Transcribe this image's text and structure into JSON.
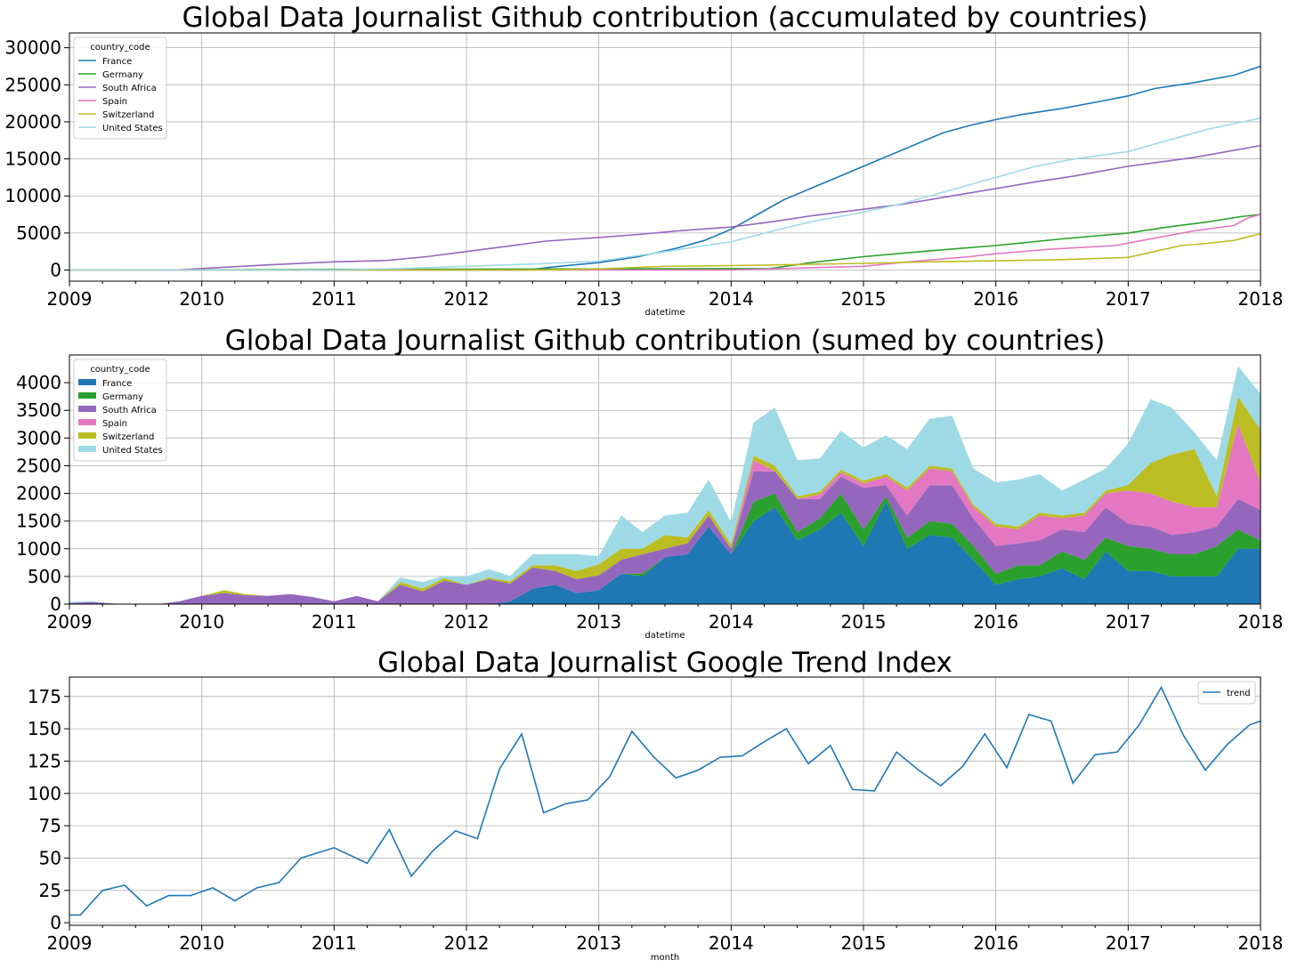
{
  "chart_data": [
    {
      "type": "line",
      "title": "Global Data Journalist Github contribution (accumulated by countries)",
      "xlabel": "datetime",
      "ylabel": "",
      "xlim": [
        2009,
        2018
      ],
      "ylim": [
        -1500,
        32000
      ],
      "x_ticks": [
        "2009",
        "2010",
        "2011",
        "2012",
        "2013",
        "2014",
        "2015",
        "2016",
        "2017",
        "2018"
      ],
      "y_ticks": [
        0,
        5000,
        10000,
        15000,
        20000,
        25000,
        30000
      ],
      "grid": true,
      "legend": {
        "title": "country_code",
        "placement": "top-left"
      },
      "series": [
        {
          "name": "France",
          "color": "#1f77b4",
          "x": [
            2009,
            2012.45,
            2012.7,
            2013.0,
            2013.3,
            2013.6,
            2013.8,
            2014.0,
            2014.2,
            2014.4,
            2014.6,
            2014.8,
            2015.0,
            2015.2,
            2015.4,
            2015.6,
            2015.8,
            2016.0,
            2016.2,
            2016.5,
            2016.8,
            2017.0,
            2017.2,
            2017.5,
            2017.8,
            2018.0
          ],
          "y": [
            0,
            0,
            500,
            1000,
            1800,
            3000,
            4000,
            5500,
            7500,
            9500,
            11000,
            12500,
            14000,
            15500,
            17000,
            18500,
            19500,
            20300,
            21000,
            21800,
            22800,
            23500,
            24500,
            25300,
            26300,
            27500
          ]
        },
        {
          "name": "Germany",
          "color": "#2ca02c",
          "x": [
            2009,
            2014.3,
            2014.6,
            2015.0,
            2015.5,
            2016.0,
            2016.5,
            2017.0,
            2017.3,
            2017.6,
            2017.85,
            2018.0
          ],
          "y": [
            0,
            200,
            1000,
            1800,
            2600,
            3300,
            4200,
            5000,
            5800,
            6500,
            7200,
            7500
          ]
        },
        {
          "name": "South Africa",
          "color": "#9467bd",
          "x": [
            2009,
            2009.8,
            2010.0,
            2010.5,
            2011.0,
            2011.4,
            2011.7,
            2012.0,
            2012.3,
            2012.6,
            2013.0,
            2013.3,
            2013.6,
            2014.0,
            2014.3,
            2014.6,
            2015.0,
            2015.3,
            2015.6,
            2016.0,
            2016.3,
            2016.6,
            2017.0,
            2017.5,
            2018.0
          ],
          "y": [
            0,
            0,
            200,
            700,
            1100,
            1300,
            1800,
            2500,
            3200,
            3900,
            4400,
            4800,
            5300,
            5800,
            6500,
            7300,
            8200,
            8900,
            9800,
            11000,
            11900,
            12700,
            14000,
            15200,
            16800
          ]
        },
        {
          "name": "Spain",
          "color": "#e377c2",
          "x": [
            2009,
            2014.0,
            2014.4,
            2015.0,
            2015.4,
            2015.8,
            2016.0,
            2016.4,
            2016.9,
            2017.2,
            2017.5,
            2017.8,
            2017.9,
            2018.0
          ],
          "y": [
            0,
            0,
            200,
            500,
            1200,
            1800,
            2200,
            2800,
            3300,
            4300,
            5300,
            6000,
            7000,
            7500
          ]
        },
        {
          "name": "Switzerland",
          "color": "#bcbd22",
          "x": [
            2009,
            2012.5,
            2013.0,
            2013.5,
            2014.0,
            2014.5,
            2015.0,
            2015.5,
            2016.0,
            2016.5,
            2017.0,
            2017.2,
            2017.4,
            2017.6,
            2017.8,
            2018.0
          ],
          "y": [
            0,
            0,
            150,
            500,
            600,
            750,
            900,
            1100,
            1250,
            1400,
            1700,
            2500,
            3300,
            3600,
            4000,
            4900
          ]
        },
        {
          "name": "United States",
          "color": "#9edae5",
          "x": [
            2009,
            2009.8,
            2010.5,
            2011.0,
            2011.5,
            2012.0,
            2012.5,
            2013.0,
            2013.4,
            2013.8,
            2014.0,
            2014.3,
            2014.6,
            2015.0,
            2015.3,
            2015.6,
            2016.0,
            2016.3,
            2016.6,
            2017.0,
            2017.3,
            2017.6,
            2018.0
          ],
          "y": [
            0,
            0,
            0,
            0,
            200,
            500,
            800,
            1200,
            2200,
            3300,
            3800,
            5200,
            6500,
            7800,
            9000,
            10500,
            12500,
            14000,
            15000,
            16000,
            17500,
            19000,
            20500
          ]
        }
      ]
    },
    {
      "type": "area",
      "stacked": true,
      "title": "Global Data Journalist Github contribution (sumed by countries)",
      "xlabel": "datetime",
      "ylabel": "",
      "xlim": [
        2009,
        2018
      ],
      "ylim": [
        0,
        4500
      ],
      "x_ticks": [
        "2009",
        "2010",
        "2011",
        "2012",
        "2013",
        "2014",
        "2015",
        "2016",
        "2017",
        "2018"
      ],
      "y_ticks": [
        0,
        500,
        1000,
        1500,
        2000,
        2500,
        3000,
        3500,
        4000
      ],
      "grid": true,
      "legend": {
        "title": "country_code",
        "placement": "top-left"
      },
      "x": [
        2009.0,
        2009.17,
        2009.33,
        2009.5,
        2009.67,
        2009.83,
        2010.0,
        2010.17,
        2010.33,
        2010.5,
        2010.67,
        2010.83,
        2011.0,
        2011.17,
        2011.33,
        2011.5,
        2011.67,
        2011.83,
        2012.0,
        2012.17,
        2012.33,
        2012.5,
        2012.67,
        2012.83,
        2013.0,
        2013.17,
        2013.33,
        2013.5,
        2013.67,
        2013.83,
        2014.0,
        2014.17,
        2014.33,
        2014.5,
        2014.67,
        2014.83,
        2015.0,
        2015.17,
        2015.33,
        2015.5,
        2015.67,
        2015.83,
        2016.0,
        2016.17,
        2016.33,
        2016.5,
        2016.67,
        2016.83,
        2017.0,
        2017.17,
        2017.33,
        2017.5,
        2017.67,
        2017.83,
        2018.0
      ],
      "series": [
        {
          "name": "France",
          "color": "#1f77b4",
          "values": [
            0,
            0,
            0,
            0,
            0,
            0,
            0,
            0,
            0,
            0,
            0,
            0,
            0,
            0,
            0,
            0,
            0,
            0,
            0,
            0,
            50,
            280,
            350,
            200,
            250,
            550,
            500,
            850,
            900,
            1400,
            900,
            1500,
            1750,
            1150,
            1350,
            1650,
            1050,
            1850,
            1000,
            1250,
            1200,
            800,
            350,
            450,
            500,
            650,
            450,
            950,
            600,
            600,
            500,
            500,
            500,
            1000,
            1000
          ]
        },
        {
          "name": "Germany",
          "color": "#2ca02c",
          "values": [
            0,
            0,
            0,
            0,
            0,
            0,
            0,
            0,
            0,
            0,
            0,
            0,
            0,
            0,
            0,
            0,
            0,
            0,
            0,
            0,
            0,
            0,
            0,
            0,
            0,
            0,
            50,
            0,
            0,
            0,
            0,
            350,
            250,
            150,
            200,
            350,
            300,
            100,
            200,
            250,
            250,
            250,
            200,
            250,
            200,
            300,
            350,
            250,
            450,
            400,
            400,
            400,
            550,
            350,
            150
          ]
        },
        {
          "name": "South Africa",
          "color": "#9467bd",
          "values": [
            20,
            40,
            10,
            0,
            0,
            50,
            150,
            200,
            160,
            150,
            180,
            130,
            50,
            150,
            50,
            350,
            230,
            420,
            350,
            450,
            320,
            380,
            250,
            250,
            270,
            250,
            350,
            150,
            200,
            200,
            100,
            550,
            400,
            600,
            350,
            300,
            750,
            200,
            400,
            650,
            700,
            500,
            500,
            400,
            450,
            400,
            500,
            550,
            400,
            400,
            350,
            400,
            350,
            550,
            550
          ]
        },
        {
          "name": "Spain",
          "color": "#e377c2",
          "values": [
            0,
            0,
            0,
            0,
            0,
            0,
            0,
            0,
            0,
            0,
            0,
            0,
            0,
            0,
            0,
            0,
            0,
            0,
            0,
            0,
            0,
            0,
            0,
            0,
            0,
            0,
            0,
            0,
            0,
            0,
            0,
            200,
            0,
            0,
            80,
            80,
            80,
            150,
            450,
            300,
            250,
            200,
            350,
            250,
            450,
            200,
            300,
            250,
            600,
            600,
            600,
            450,
            350,
            1350,
            500
          ]
        },
        {
          "name": "Switzerland",
          "color": "#bcbd22",
          "values": [
            0,
            0,
            0,
            0,
            0,
            0,
            0,
            50,
            20,
            0,
            0,
            0,
            0,
            0,
            0,
            50,
            50,
            50,
            0,
            30,
            40,
            40,
            100,
            150,
            200,
            200,
            100,
            250,
            100,
            100,
            80,
            80,
            100,
            50,
            50,
            50,
            50,
            50,
            50,
            50,
            50,
            50,
            50,
            50,
            50,
            50,
            50,
            50,
            100,
            550,
            850,
            1050,
            200,
            500,
            950
          ]
        },
        {
          "name": "United States",
          "color": "#9edae5",
          "values": [
            20,
            10,
            0,
            0,
            0,
            0,
            0,
            0,
            0,
            0,
            0,
            0,
            0,
            0,
            0,
            80,
            120,
            40,
            150,
            150,
            100,
            200,
            200,
            300,
            150,
            600,
            300,
            350,
            450,
            550,
            400,
            600,
            1050,
            650,
            600,
            700,
            600,
            700,
            700,
            850,
            950,
            650,
            750,
            850,
            700,
            450,
            600,
            400,
            750,
            1150,
            850,
            300,
            650,
            550,
            650
          ]
        }
      ]
    },
    {
      "type": "line",
      "title": "Global Data Journalist Google Trend Index",
      "xlabel": "month",
      "ylabel": "",
      "xlim": [
        2009,
        2018
      ],
      "ylim": [
        -2,
        190
      ],
      "x_ticks": [
        "2009",
        "2010",
        "2011",
        "2012",
        "2013",
        "2014",
        "2015",
        "2016",
        "2017",
        "2018"
      ],
      "y_ticks": [
        0,
        25,
        50,
        75,
        100,
        125,
        150,
        175
      ],
      "grid": true,
      "legend": {
        "title": "",
        "placement": "top-right"
      },
      "series": [
        {
          "name": "trend",
          "color": "#1f77b4",
          "x": [
            2009.0,
            2009.083,
            2009.25,
            2009.417,
            2009.583,
            2009.75,
            2009.917,
            2010.083,
            2010.25,
            2010.417,
            2010.583,
            2010.75,
            2011.0,
            2011.25,
            2011.417,
            2011.583,
            2011.75,
            2011.917,
            2012.083,
            2012.25,
            2012.417,
            2012.583,
            2012.75,
            2012.917,
            2013.083,
            2013.25,
            2013.417,
            2013.583,
            2013.75,
            2013.917,
            2014.083,
            2014.25,
            2014.417,
            2014.583,
            2014.75,
            2014.917,
            2015.083,
            2015.25,
            2015.417,
            2015.583,
            2015.75,
            2015.917,
            2016.083,
            2016.25,
            2016.417,
            2016.583,
            2016.75,
            2016.917,
            2017.083,
            2017.25,
            2017.417,
            2017.583,
            2017.75,
            2017.917,
            2018.0
          ],
          "y": [
            6,
            6,
            25,
            29,
            13,
            21,
            21,
            27,
            17,
            27,
            31,
            50,
            58,
            46,
            72,
            36,
            56,
            71,
            65,
            119,
            146,
            85,
            92,
            95,
            113,
            148,
            128,
            112,
            118,
            128,
            129,
            140,
            150,
            123,
            137,
            103,
            102,
            132,
            118,
            106,
            121,
            146,
            120,
            161,
            156,
            108,
            130,
            132,
            153,
            182,
            145,
            118,
            138,
            153,
            156
          ]
        }
      ]
    }
  ]
}
